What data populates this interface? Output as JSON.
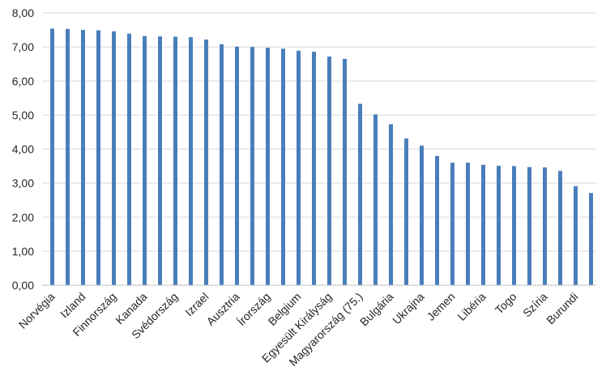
{
  "chart_data": {
    "type": "bar",
    "title": "",
    "xlabel": "",
    "ylabel": "",
    "ylim": [
      0,
      8
    ],
    "ytick_step": 1,
    "ytick_labels": [
      "0,00",
      "1,00",
      "2,00",
      "3,00",
      "4,00",
      "5,00",
      "6,00",
      "7,00",
      "8,00"
    ],
    "grid": true,
    "legend": "none",
    "bar_color": "#4a7ebb",
    "categories": [
      "Norvégia",
      "",
      "Izland",
      "",
      "Finnország",
      "",
      "Kanada",
      "",
      "Svédország",
      "",
      "Izrael",
      "",
      "Ausztria",
      "",
      "Írország",
      "",
      "Belgium",
      "",
      "Egyesült Királyság",
      "",
      "Magyarország (75.)",
      "",
      "Bulgária",
      "",
      "Ukrajna",
      "",
      "Jemen",
      "",
      "Libéria",
      "",
      "Togo",
      "",
      "Szíria",
      "",
      "Burundi",
      ""
    ],
    "values": [
      7.54,
      7.53,
      7.5,
      7.49,
      7.46,
      7.39,
      7.32,
      7.31,
      7.3,
      7.29,
      7.22,
      7.08,
      7.01,
      7.0,
      6.98,
      6.95,
      6.89,
      6.86,
      6.72,
      6.65,
      5.33,
      5.02,
      4.73,
      4.31,
      4.1,
      3.8,
      3.6,
      3.6,
      3.54,
      3.51,
      3.5,
      3.47,
      3.46,
      3.36,
      2.91,
      2.71
    ]
  }
}
